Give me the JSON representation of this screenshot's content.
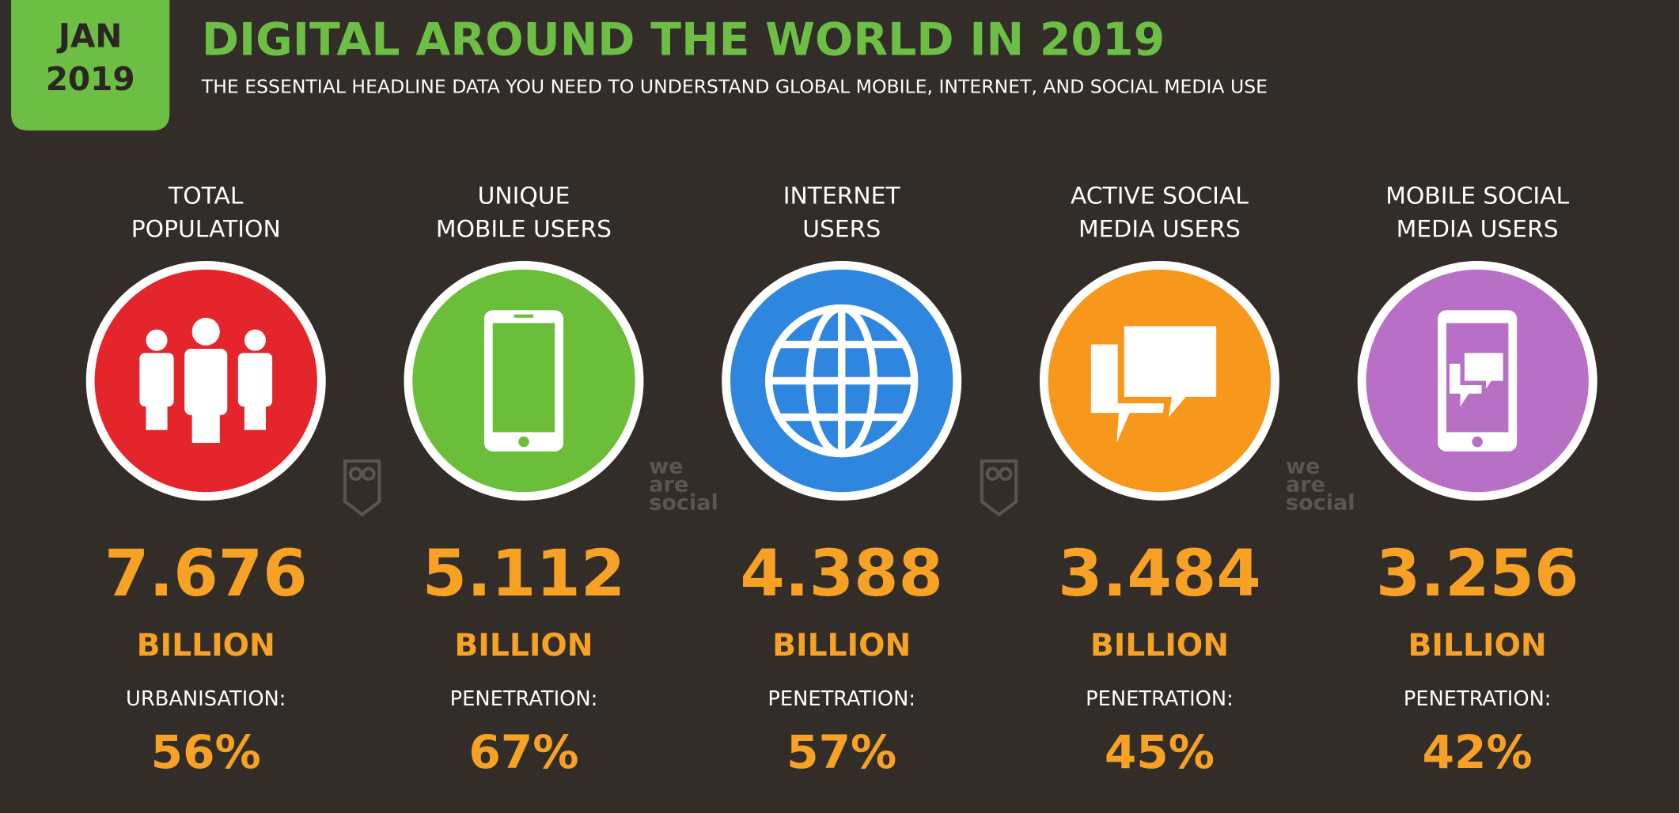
{
  "header": {
    "date": [
      "JAN",
      "2019"
    ],
    "title": "DIGITAL AROUND THE WORLD IN 2019",
    "subtitle": "THE ESSENTIAL HEADLINE DATA YOU NEED TO UNDERSTAND GLOBAL MOBILE, INTERNET, AND SOCIAL MEDIA USE"
  },
  "watermark": [
    "we",
    "are",
    "social"
  ],
  "cards": [
    {
      "label": [
        "TOTAL",
        "POPULATION"
      ],
      "value": "7.676",
      "unit": "BILLION",
      "metric_label": "URBANISATION:",
      "metric_value": "56%"
    },
    {
      "label": [
        "UNIQUE",
        "MOBILE USERS"
      ],
      "value": "5.112",
      "unit": "BILLION",
      "metric_label": "PENETRATION:",
      "metric_value": "67%"
    },
    {
      "label": [
        "INTERNET",
        "USERS"
      ],
      "value": "4.388",
      "unit": "BILLION",
      "metric_label": "PENETRATION:",
      "metric_value": "57%"
    },
    {
      "label": [
        "ACTIVE SOCIAL",
        "MEDIA USERS"
      ],
      "value": "3.484",
      "unit": "BILLION",
      "metric_label": "PENETRATION:",
      "metric_value": "45%"
    },
    {
      "label": [
        "MOBILE SOCIAL",
        "MEDIA USERS"
      ],
      "value": "3.256",
      "unit": "BILLION",
      "metric_label": "PENETRATION:",
      "metric_value": "42%"
    }
  ]
}
